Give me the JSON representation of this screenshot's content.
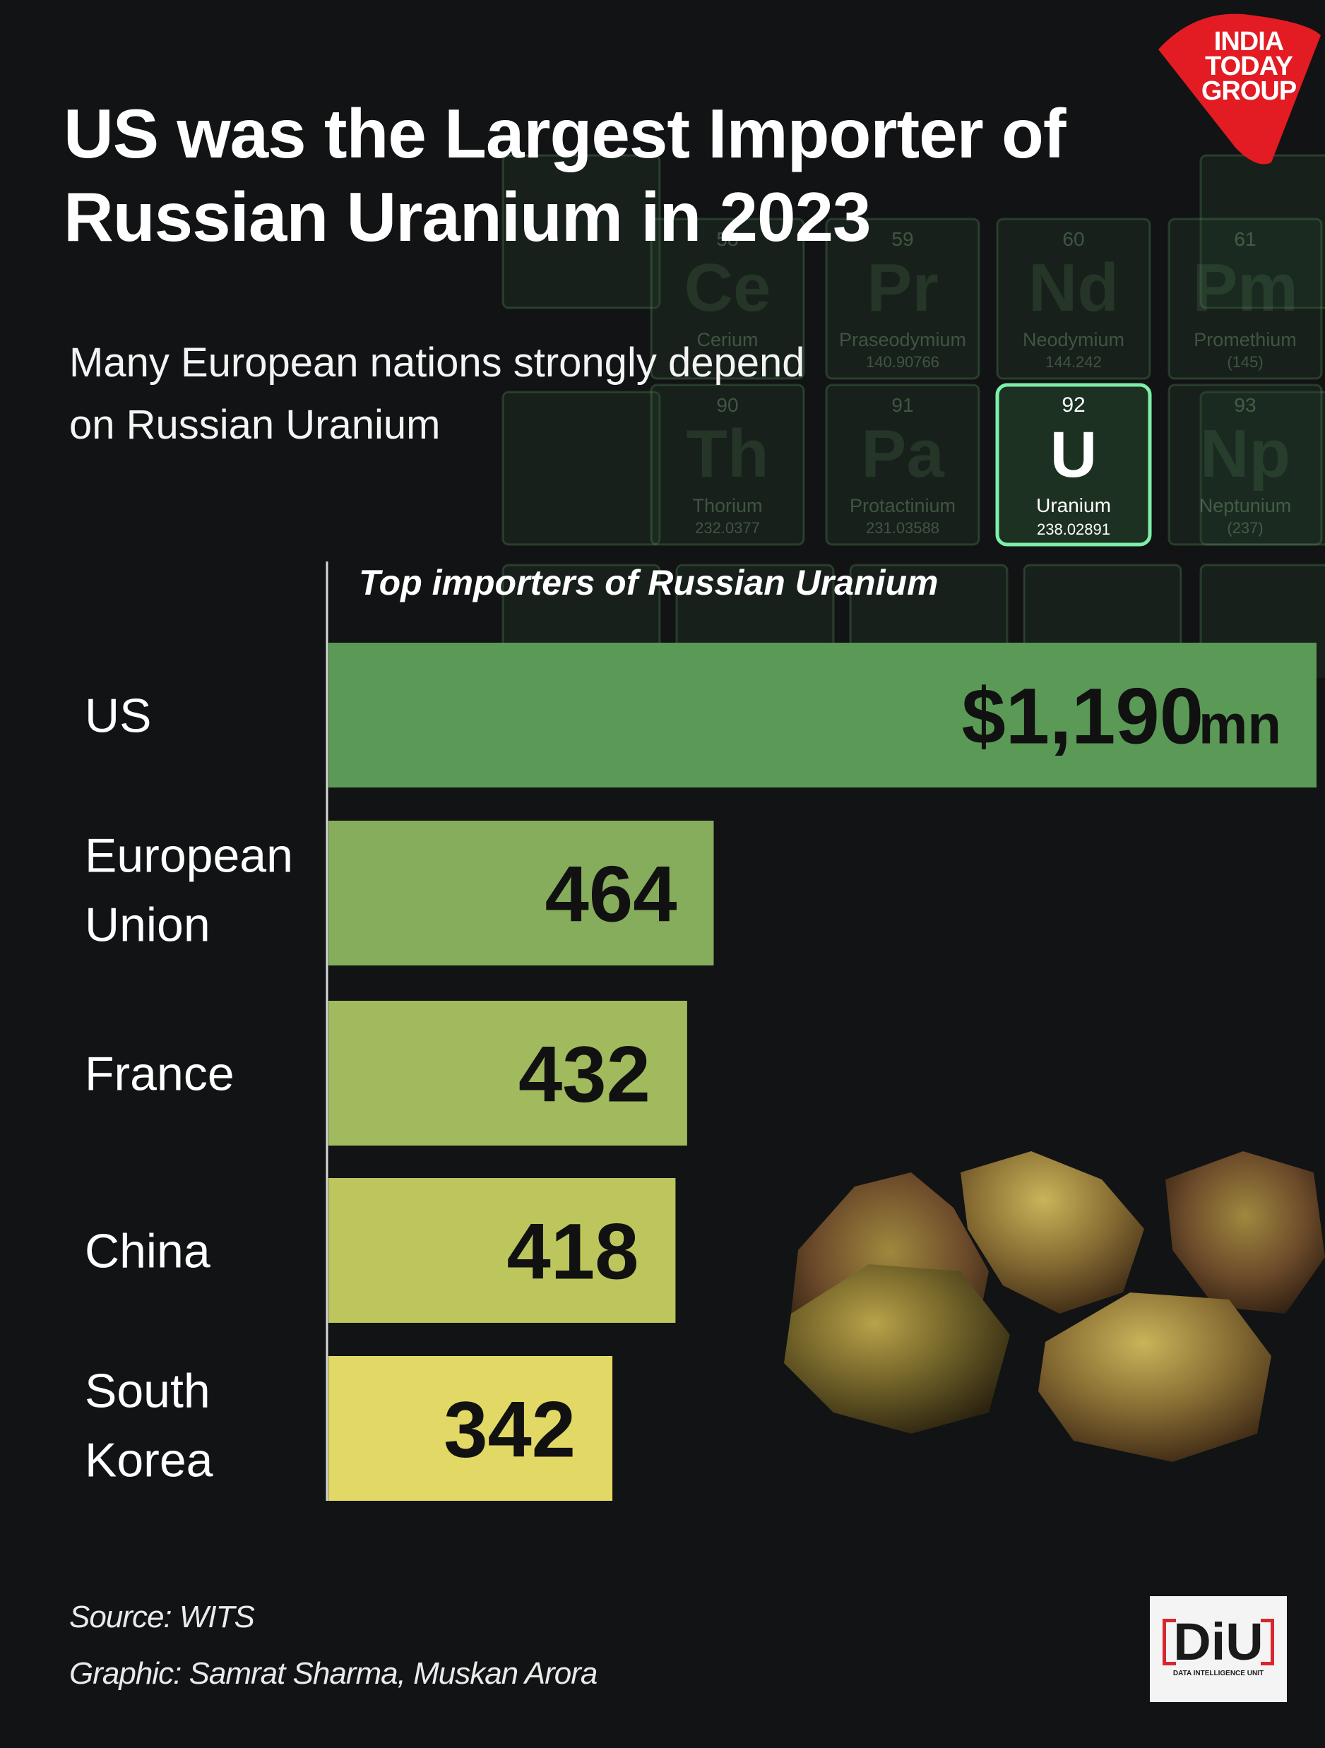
{
  "brand": {
    "logo_lines": [
      "INDIA",
      "TODAY",
      "GROUP"
    ],
    "logo_color": "#e31b23"
  },
  "header": {
    "title": "US was the Largest Importer of Russian Uranium in 2023",
    "subtitle": "Many European nations strongly depend on Russian Uranium"
  },
  "background_table": {
    "elements": [
      {
        "number": "58",
        "symbol": "Ce",
        "name": "Cerium",
        "mass": ""
      },
      {
        "number": "59",
        "symbol": "Pr",
        "name": "Praseodymium",
        "mass": "140.90766"
      },
      {
        "number": "60",
        "symbol": "Nd",
        "name": "Neodymium",
        "mass": "144.242"
      },
      {
        "number": "61",
        "symbol": "Pm",
        "name": "Promethium",
        "mass": "(145)"
      },
      {
        "number": "90",
        "symbol": "Th",
        "name": "Thorium",
        "mass": "232.0377"
      },
      {
        "number": "91",
        "symbol": "Pa",
        "name": "Protactinium",
        "mass": "231.03588"
      },
      {
        "number": "92",
        "symbol": "U",
        "name": "Uranium",
        "mass": "238.02891"
      },
      {
        "number": "93",
        "symbol": "Np",
        "name": "Neptunium",
        "mass": "(237)"
      }
    ]
  },
  "chart_data": {
    "type": "bar",
    "orientation": "horizontal",
    "title": "Top importers of Russian Uranium",
    "categories": [
      "US",
      "European Union",
      "France",
      "China",
      "South Korea"
    ],
    "values": [
      1190,
      464,
      432,
      418,
      342
    ],
    "value_labels": [
      "$1,190",
      "464",
      "432",
      "418",
      "342"
    ],
    "first_label_unit": "mn",
    "xlim": [
      0,
      1190
    ],
    "bar_colors": [
      "#5a9a56",
      "#86ad5c",
      "#a1ba5d",
      "#bcc65d",
      "#e2d865"
    ]
  },
  "footer": {
    "source": "Source: WITS",
    "credit": "Graphic: Samrat Sharma, Muskan Arora"
  },
  "diu_logo": {
    "text": "DiU",
    "subtext": "DATA INTELLIGENCE UNIT"
  }
}
